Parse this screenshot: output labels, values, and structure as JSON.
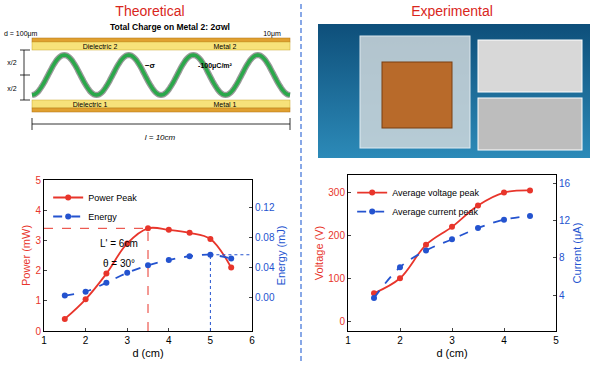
{
  "panels": {
    "left_title": "Theoretical",
    "right_title": "Experimental"
  },
  "diagram": {
    "header": "Total Charge on Metal 2: 2σwl",
    "thickness": "d = 100μm",
    "dielectric_top": "Dielectric 2",
    "metal_top": "Metal 2",
    "metal_thickness": "10μm",
    "charge_symbol": "−σ",
    "charge_density": "-100μC/m²",
    "gap_top": "x/2",
    "gap_bottom": "x/2",
    "dielectric_bottom": "Dielectric 1",
    "metal_bottom": "Metal 1",
    "length": "l = 10cm"
  },
  "chart_data": [
    {
      "type": "line",
      "xlabel": "d (cm)",
      "ylabel": "Power (mW)",
      "y2label": "Energy (mJ)",
      "x": [
        1.5,
        2,
        2.5,
        3,
        3.5,
        4,
        4.5,
        5,
        5.5
      ],
      "series": [
        {
          "name": "Power Peak",
          "color": "#e8352b",
          "marker": "circle",
          "line_style": "solid",
          "values": [
            0.4,
            1.05,
            1.9,
            2.9,
            3.4,
            3.35,
            3.25,
            3.05,
            2.1
          ]
        },
        {
          "name": "Energy",
          "color": "#2453cf",
          "marker": "circle",
          "line_style": "dash",
          "axis": "y2",
          "values": [
            0.003,
            0.008,
            0.02,
            0.033,
            0.043,
            0.05,
            0.055,
            0.057,
            0.052
          ]
        }
      ],
      "xlim": [
        1,
        6
      ],
      "xticks": [
        1,
        2,
        3,
        4,
        5,
        6
      ],
      "ylim": [
        0,
        5
      ],
      "yticks": [
        0,
        1,
        2,
        3,
        4,
        5
      ],
      "y2lim": [
        -0.044,
        0.156
      ],
      "y2ticks": [
        {
          "value": 0,
          "label": "0.00"
        },
        0.04,
        0.08,
        0.12
      ],
      "legend": "upper left",
      "annotations": [
        "L' = 6cm",
        "θ = 30°"
      ]
    },
    {
      "type": "line",
      "xlabel": "d (cm)",
      "ylabel": "Voltage (V)",
      "y2label": "Current (μA)",
      "x": [
        1.5,
        2,
        2.5,
        3,
        3.5,
        4,
        4.5
      ],
      "series": [
        {
          "name": "Average voltage peak",
          "color": "#e8352b",
          "marker": "circle",
          "line_style": "solid",
          "values": [
            65,
            100,
            178,
            220,
            270,
            300,
            305
          ]
        },
        {
          "name": "Average current peak",
          "color": "#2453cf",
          "marker": "circle",
          "line_style": "dash",
          "axis": "y2",
          "values": [
            3.7,
            7.0,
            8.8,
            10.0,
            11.2,
            12.1,
            12.5
          ]
        }
      ],
      "xlim": [
        1,
        5
      ],
      "xticks": [
        1,
        2,
        3,
        4,
        5
      ],
      "ylim": [
        -23,
        341
      ],
      "yticks": [
        0,
        100,
        200,
        300
      ],
      "y2lim": [
        0.15,
        16.9
      ],
      "y2ticks": [
        4,
        8,
        12,
        16
      ],
      "legend": "upper left"
    }
  ]
}
